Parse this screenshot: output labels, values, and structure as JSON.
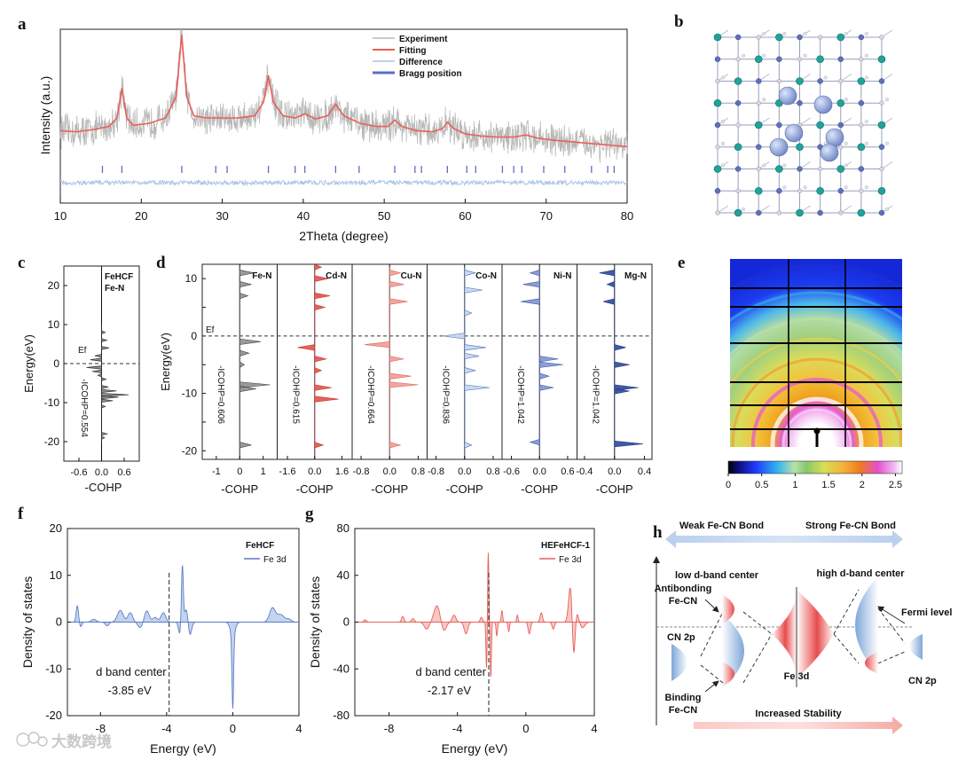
{
  "panel_letters": [
    "a",
    "b",
    "c",
    "d",
    "e",
    "f",
    "g",
    "h"
  ],
  "watermark": "大数跨境",
  "chart_data": [
    {
      "id": "a",
      "type": "line",
      "xlabel": "2Theta (degree)",
      "ylabel": "Intensity (a.u.)",
      "xlim": [
        10,
        80
      ],
      "xticks": [
        10,
        20,
        30,
        40,
        50,
        60,
        70,
        80
      ],
      "legend": [
        "Experiment",
        "Fitting",
        "Difference",
        "Bragg position"
      ],
      "legend_placement": "top-right",
      "series": [
        {
          "name": "Fitting",
          "color": "#e8605a",
          "x": [
            10,
            12,
            14,
            16,
            17,
            17.6,
            18.2,
            19,
            21,
            23,
            24.3,
            25,
            25.6,
            26.5,
            28,
            30,
            32,
            34,
            35.1,
            35.7,
            36.3,
            37.5,
            39,
            40.2,
            41.5,
            43,
            44,
            45,
            47,
            49,
            50.5,
            51.3,
            52.2,
            54,
            56,
            57.2,
            57.8,
            58.6,
            60,
            62,
            64,
            66,
            67.5,
            69,
            71,
            74,
            77,
            80
          ],
          "y": [
            0.48,
            0.47,
            0.49,
            0.52,
            0.6,
            0.88,
            0.6,
            0.53,
            0.55,
            0.6,
            0.8,
            1.38,
            0.8,
            0.62,
            0.6,
            0.6,
            0.6,
            0.62,
            0.75,
            1.0,
            0.75,
            0.62,
            0.6,
            0.64,
            0.59,
            0.62,
            0.73,
            0.62,
            0.55,
            0.52,
            0.52,
            0.58,
            0.52,
            0.48,
            0.47,
            0.5,
            0.56,
            0.5,
            0.45,
            0.43,
            0.42,
            0.42,
            0.44,
            0.41,
            0.39,
            0.37,
            0.35,
            0.33
          ]
        }
      ],
      "bragg_positions": [
        15.2,
        17.6,
        25,
        29.2,
        30.6,
        35.7,
        39,
        40.2,
        44,
        46.9,
        51.3,
        53.8,
        54.6,
        57.8,
        60.2,
        61.3,
        64.6,
        66,
        67,
        69.7,
        72.3,
        75.6,
        77.6,
        78.4
      ]
    },
    {
      "id": "c",
      "type": "area",
      "xlabel": "-COHP",
      "ylabel": "Energy(eV)",
      "xlim": [
        -1.0,
        1.0
      ],
      "ylim": [
        -25,
        25
      ],
      "xticks": [
        -0.6,
        0.0,
        0.6
      ],
      "yticks": [
        -20,
        -10,
        0,
        10,
        20
      ],
      "label_lines": [
        "FeHCF",
        "Fe-N"
      ],
      "ef_label": "Ef",
      "icohp": "-ICOHP=0.554"
    },
    {
      "id": "d",
      "type": "area",
      "xlabel": "-COHP",
      "ylabel": "Energy(eV)",
      "ylim": [
        -21.5,
        12.5
      ],
      "yticks": [
        -20,
        -15,
        -10,
        -5,
        0,
        5,
        10
      ],
      "ef_label": "Ef",
      "subpanels": [
        {
          "label": "Fe-N",
          "icohp": "-ICOHP=0.606",
          "color": "#9a9a9a",
          "edge": "#444444",
          "xlim": [
            -1.6,
            1.6
          ],
          "xticks": [
            "-1",
            "0",
            "1"
          ],
          "xtick_vals": [
            -1,
            0,
            1
          ]
        },
        {
          "label": "Cd-N",
          "icohp": "-ICOHP=0.615",
          "color": "#e8605a",
          "edge": "#c0392b",
          "xlim": [
            -2.2,
            2.2
          ],
          "xticks": [
            "-1.6",
            "0.0",
            "1.6"
          ],
          "xtick_vals": [
            -1.6,
            0,
            1.6
          ]
        },
        {
          "label": "Cu-N",
          "icohp": "-ICOHP=0.664",
          "color": "#f2a59f",
          "edge": "#d9665e",
          "xlim": [
            -1.05,
            1.05
          ],
          "xticks": [
            "-0.8",
            "0.0",
            "0.8"
          ],
          "xtick_vals": [
            -0.8,
            0,
            0.8
          ]
        },
        {
          "label": "Co-N",
          "icohp": "-ICOHP=0.836",
          "color": "#c9d8f2",
          "edge": "#4a6fb5",
          "xlim": [
            -1.05,
            1.05
          ],
          "xticks": [
            "-0.8",
            "0.0",
            "0.8"
          ],
          "xtick_vals": [
            -0.8,
            0,
            0.8
          ]
        },
        {
          "label": "Ni-N",
          "icohp": "-ICOHP=1.042",
          "color": "#8a9fd4",
          "edge": "#3b55a0",
          "xlim": [
            -0.8,
            0.8
          ],
          "xticks": [
            "-0.6",
            "0.0",
            "0.6"
          ],
          "xtick_vals": [
            -0.6,
            0,
            0.6
          ]
        },
        {
          "label": "Mg-N",
          "icohp": "-ICOHP=1.042",
          "color": "#3f5ba8",
          "edge": "#22347a",
          "xlim": [
            -0.5,
            0.5
          ],
          "xticks": [
            "-0.4",
            "0.0",
            "0.4"
          ],
          "xtick_vals": [
            -0.4,
            0,
            0.4
          ]
        }
      ]
    },
    {
      "id": "e",
      "type": "heatmap",
      "colorbar_ticks": [
        "0",
        "0.5",
        "1",
        "1.5",
        "2",
        "2.5"
      ],
      "colorbar_range": [
        0,
        2.6
      ]
    },
    {
      "id": "f",
      "type": "line",
      "xlabel": "Energy (eV)",
      "ylabel": "Density of states",
      "xlim": [
        -10,
        4
      ],
      "ylim": [
        -20,
        20
      ],
      "xticks": [
        -8,
        -4,
        0,
        4
      ],
      "yticks": [
        -20,
        -10,
        0,
        10,
        20
      ],
      "legend_title": "FeHCF",
      "series_name": "Fe 3d",
      "annotation": [
        "d band center",
        "-3.85 eV"
      ],
      "d_band_center": -3.85,
      "color": "#5b7cc4",
      "fill": "#c4d4f0"
    },
    {
      "id": "g",
      "type": "line",
      "xlabel": "Energy (eV)",
      "ylabel": "Density of states",
      "xlim": [
        -10,
        4
      ],
      "ylim": [
        -80,
        80
      ],
      "xticks": [
        -8,
        -4,
        0,
        4
      ],
      "yticks": [
        -80,
        -40,
        0,
        40,
        80
      ],
      "legend_title": "HEFeHCF-1",
      "series_name": "Fe 3d",
      "annotation": [
        "d band center",
        "-2.17 eV"
      ],
      "d_band_center": -2.17,
      "color": "#e8605a",
      "fill": "#f6c8c5"
    }
  ],
  "panel_h": {
    "weak_bond": "Weak Fe-CN Bond",
    "strong_bond": "Strong Fe-CN Bond",
    "low_center": "low d-band center",
    "high_center": "high d-band center",
    "antibonding": [
      "Antibonding",
      "Fe-CN"
    ],
    "binding": [
      "Binding",
      "Fe-CN"
    ],
    "cn2p_left": "CN 2p",
    "cn2p_right": "CN 2p",
    "fe3d": "Fe 3d",
    "fermi": "Fermi level",
    "stability": "Increased Stability"
  }
}
